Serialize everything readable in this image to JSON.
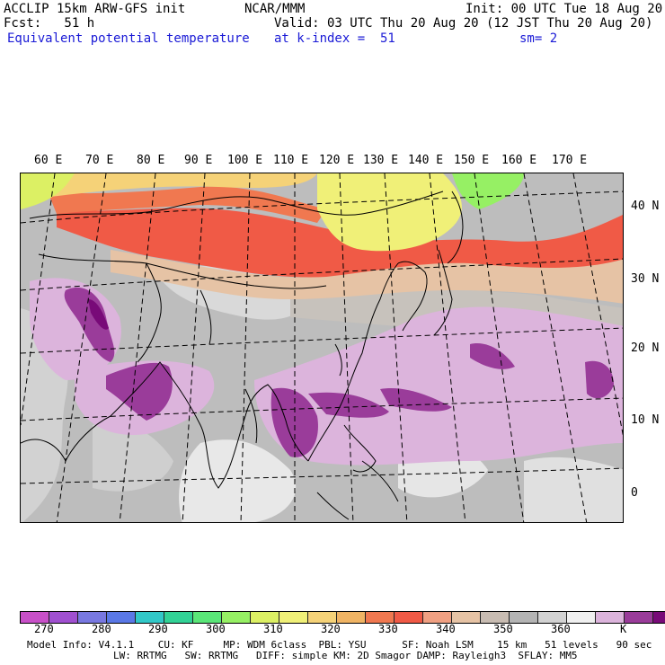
{
  "header": {
    "line1_left": "ACCLIP 15km ARW-GFS init",
    "line1_center": "NCAR/MMM",
    "line1_right": "Init: 00 UTC Tue 18 Aug 20",
    "fcst_label": "Fcst:   51 h",
    "valid": "Valid: 03 UTC Thu 20 Aug 20 (12 JST Thu 20 Aug 20)",
    "field": "Equivalent potential temperature",
    "level": "at k-index =  51",
    "smoothing": "sm= 2"
  },
  "map": {
    "lon_labels": [
      "60 E",
      "70 E",
      "80 E",
      "90 E",
      "100 E",
      "110 E",
      "120 E",
      "130 E",
      "140 E",
      "150 E",
      "160 E",
      "170 E"
    ],
    "lat_labels": [
      "40 N",
      "30 N",
      "20 N",
      "10 N",
      "0"
    ]
  },
  "colorbar": {
    "colors": [
      "#c850c8",
      "#a050d0",
      "#7878e0",
      "#5a78e6",
      "#32c8c8",
      "#32d296",
      "#5ae678",
      "#96f064",
      "#dcf064",
      "#f0f078",
      "#f5d278",
      "#f0b464",
      "#f07850",
      "#f05a46",
      "#f0a082",
      "#e6c3a5",
      "#c8bcb2",
      "#b4b4b4",
      "#d2d2d2",
      "#f0f0f0",
      "#dcb4dc",
      "#9a3c9a",
      "#780a78"
    ],
    "labels": [
      "270",
      "280",
      "290",
      "300",
      "310",
      "320",
      "330",
      "340",
      "350",
      "360"
    ],
    "unit": "K"
  },
  "footer": {
    "line1": "Model Info: V4.1.1    CU: KF     MP: WDM 6class  PBL: YSU      SF: Noah LSM    15 km   51 levels   90 sec",
    "line2": "LW: RRTMG   SW: RRTMG   DIFF: simple KM: 2D Smagor DAMP: Rayleigh3  SFLAY: MM5"
  }
}
